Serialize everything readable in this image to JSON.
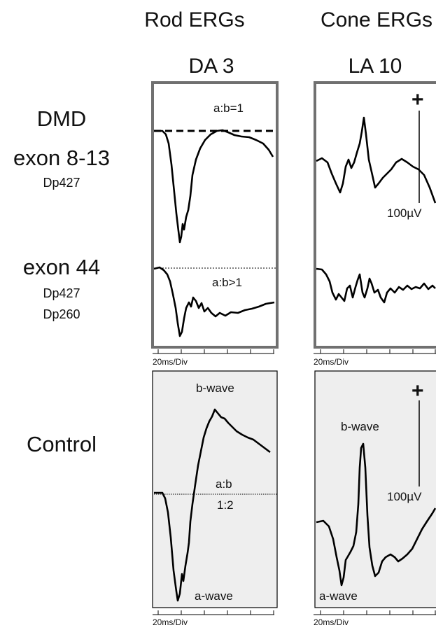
{
  "headers": {
    "rod": "Rod ERGs",
    "cone": "Cone ERGs",
    "rod_protocol": "DA 3",
    "cone_protocol": "LA 10"
  },
  "rows": {
    "dmd": "DMD",
    "exon813": "exon 8-13",
    "exon813_protein": "Dp427",
    "exon44": "exon 44",
    "exon44_protein1": "Dp427",
    "exon44_protein2": "Dp260",
    "control": "Control"
  },
  "annotations": {
    "ratio_dmd813": "a:b=1",
    "ratio_dmd44": "a:b>1",
    "ratio_control_top": "a:b",
    "ratio_control_bottom": "1:2",
    "bwave": "b-wave",
    "awave": "a-wave",
    "scale_plus": "+",
    "scale_value": "100µV",
    "timebase": "20ms/Div"
  },
  "colors": {
    "dmd_panel_border": "#707070",
    "control_panel_fill": "#eeeeee",
    "trace": "#000000"
  }
}
